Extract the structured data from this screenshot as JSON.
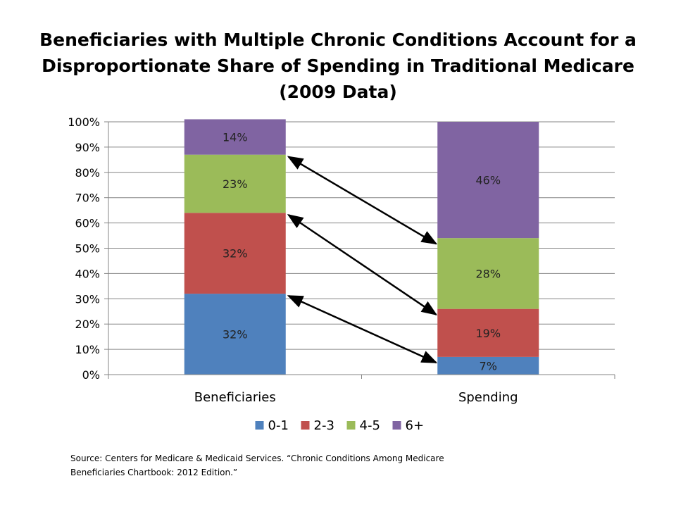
{
  "title_lines": [
    "Beneficiaries with Multiple Chronic Conditions Account for a",
    "Disproportionate Share of Spending in Traditional Medicare",
    "(2009 Data)"
  ],
  "source_lines": [
    "Source: Centers for Medicare & Medicaid Services. “Chronic Conditions Among Medicare",
    "Beneficiaries Chartbook: 2012 Edition.”"
  ],
  "chart_data": {
    "type": "bar",
    "stacked": true,
    "categories": [
      "Beneficiaries",
      "Spending"
    ],
    "series": [
      {
        "name": "0-1",
        "color": "#4F81BD",
        "values": [
          32,
          7
        ],
        "labels": [
          "32%",
          "7%"
        ]
      },
      {
        "name": "2-3",
        "color": "#C0504D",
        "values": [
          32,
          19
        ],
        "labels": [
          "32%",
          "19%"
        ]
      },
      {
        "name": "4-5",
        "color": "#9BBB59",
        "values": [
          23,
          28
        ],
        "labels": [
          "23%",
          "28%"
        ]
      },
      {
        "name": "6+",
        "color": "#8064A2",
        "values": [
          14,
          46
        ],
        "labels": [
          "14%",
          "46%"
        ]
      }
    ],
    "ylim": [
      0,
      100
    ],
    "yticks": [
      "0%",
      "10%",
      "20%",
      "30%",
      "40%",
      "50%",
      "60%",
      "70%",
      "80%",
      "90%",
      "100%"
    ],
    "grid": true,
    "legend": "bottom",
    "annotations": "double-headed arrows link each series boundary between the two bars"
  }
}
